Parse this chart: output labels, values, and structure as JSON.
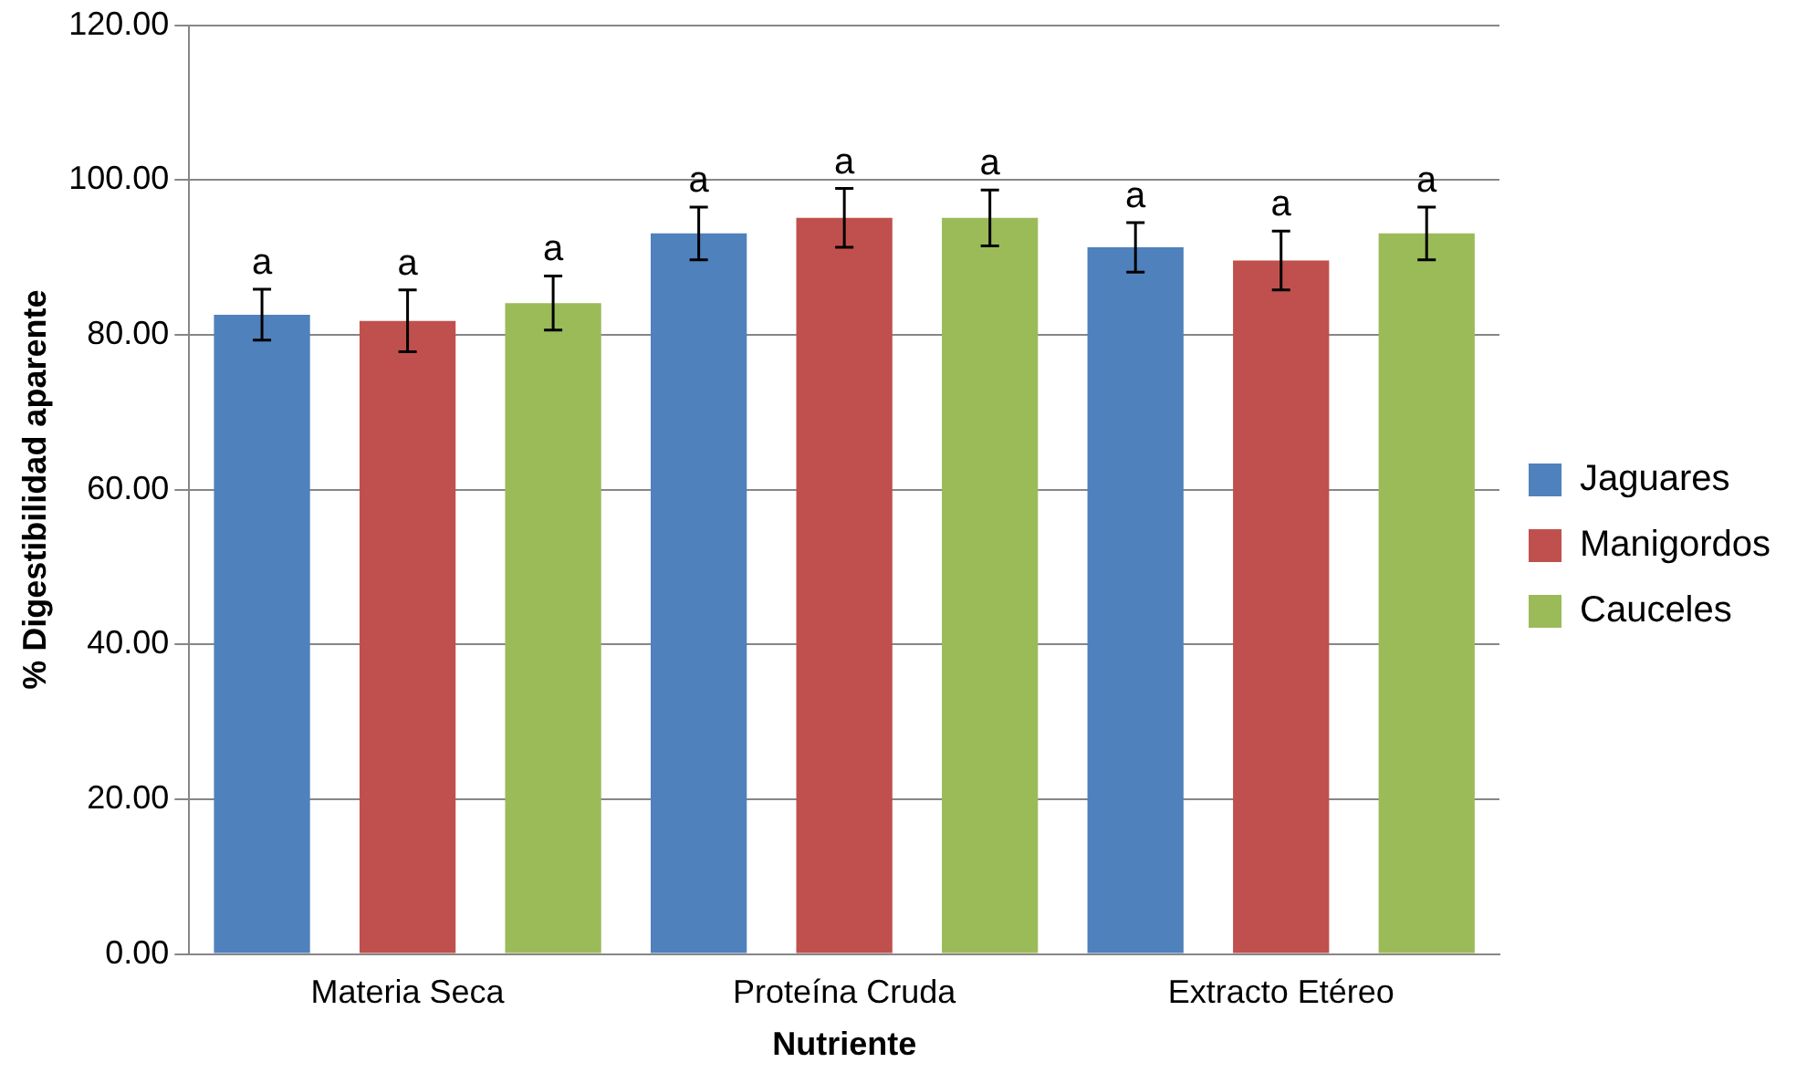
{
  "chart_data": {
    "type": "bar",
    "xlabel": "Nutriente",
    "ylabel": "% Digestibilidad aparente",
    "categories": [
      "Materia Seca",
      "Proteína Cruda",
      "Extracto Etéreo"
    ],
    "series": [
      {
        "name": "Jaguares",
        "color": "#4f81bd",
        "values": [
          82.6,
          93.1,
          91.3
        ],
        "errors": [
          3.3,
          3.4,
          3.2
        ],
        "value_labels": [
          "a",
          "a",
          "a"
        ]
      },
      {
        "name": "Manigordos",
        "color": "#c0504d",
        "values": [
          81.8,
          95.1,
          89.6
        ],
        "errors": [
          4.0,
          3.8,
          3.8
        ],
        "value_labels": [
          "a",
          "a",
          "a"
        ]
      },
      {
        "name": "Cauceles",
        "color": "#9bbb59",
        "values": [
          84.1,
          95.1,
          93.1
        ],
        "errors": [
          3.5,
          3.6,
          3.4
        ],
        "value_labels": [
          "a",
          "a",
          "a"
        ]
      }
    ],
    "ylim": [
      0,
      120
    ],
    "yticks": [
      {
        "value": 0,
        "label": "0.00"
      },
      {
        "value": 20,
        "label": "20.00"
      },
      {
        "value": 40,
        "label": "40.00"
      },
      {
        "value": 60,
        "label": "60.00"
      },
      {
        "value": 80,
        "label": "80.00"
      },
      {
        "value": 100,
        "label": "100.00"
      },
      {
        "value": 120,
        "label": "120.00"
      }
    ],
    "grid": "y",
    "legend": "right"
  }
}
